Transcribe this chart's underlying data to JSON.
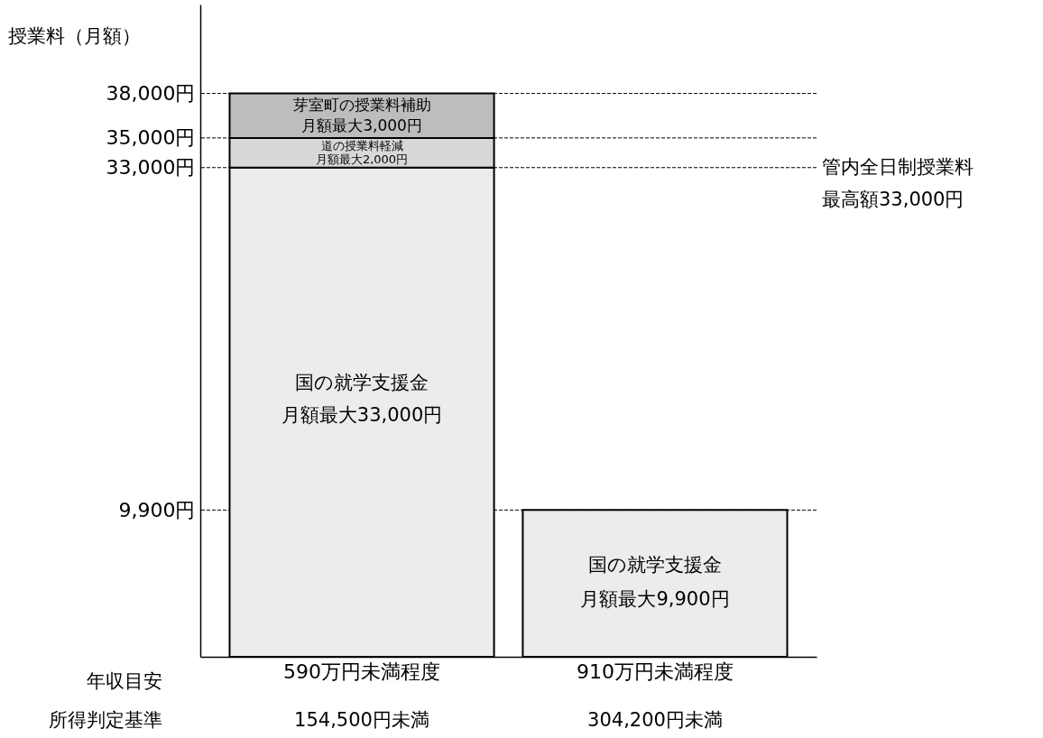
{
  "chart_data": {
    "type": "bar",
    "stacked": true,
    "ylabel": "授業料（月額）",
    "categories": [
      "590万円未満程度",
      "910万円未満程度"
    ],
    "series": [
      {
        "color": "#ececec",
        "values": [
          33000,
          9900
        ]
      },
      {
        "color": "#d8d8d8",
        "values": [
          2000,
          null
        ]
      },
      {
        "color": "#bdbdbd",
        "values": [
          3000,
          null
        ]
      }
    ],
    "ylim": [
      0,
      44000
    ],
    "yticks": [
      {
        "value": 9900,
        "label": "9,900円"
      },
      {
        "value": 33000,
        "label": "33,000円"
      },
      {
        "value": 35000,
        "label": "35,000円"
      },
      {
        "value": 38000,
        "label": "38,000円"
      }
    ],
    "ref_lines": [
      {
        "axis": "y",
        "value": 9900,
        "line_style": "dashed"
      },
      {
        "axis": "y",
        "value": 33000,
        "line_style": "dashed",
        "label": "管内全日制授業料最高額33,000円"
      },
      {
        "axis": "y",
        "value": 35000,
        "line_style": "dashed"
      },
      {
        "axis": "y",
        "value": 38000,
        "line_style": "dashed"
      }
    ],
    "annotations": [
      "芽室町の授業料補助",
      "月額最大3,000円",
      "道の授業料軽減",
      "月額最大2,000円",
      "国の就学支援金",
      "月額最大33,000円",
      "国の就学支援金",
      "月額最大9,900円",
      "年収目安",
      "所得判定基準",
      "154,500円未満",
      "304,200円未満"
    ]
  }
}
